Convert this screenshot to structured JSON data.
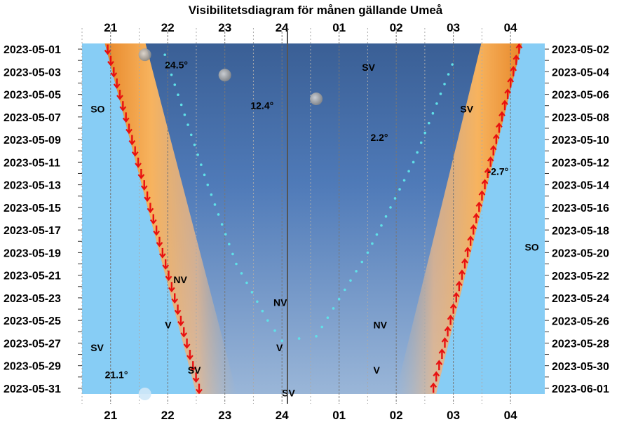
{
  "chart_data": {
    "type": "visibility-diagram",
    "title": "Visibilitetsdiagram för månen gällande Umeå",
    "x_hour_labels": [
      "21",
      "22",
      "23",
      "24",
      "01",
      "02",
      "03",
      "04"
    ],
    "dates_left": [
      "2023-05-01",
      "2023-05-03",
      "2023-05-05",
      "2023-05-07",
      "2023-05-09",
      "2023-05-11",
      "2023-05-13",
      "2023-05-15",
      "2023-05-17",
      "2023-05-19",
      "2023-05-21",
      "2023-05-23",
      "2023-05-25",
      "2023-05-27",
      "2023-05-29",
      "2023-05-31"
    ],
    "dates_right": [
      "2023-05-02",
      "2023-05-04",
      "2023-05-06",
      "2023-05-08",
      "2023-05-10",
      "2023-05-12",
      "2023-05-14",
      "2023-05-16",
      "2023-05-18",
      "2023-05-20",
      "2023-05-22",
      "2023-05-24",
      "2023-05-26",
      "2023-05-28",
      "2023-05-30",
      "2023-06-01"
    ],
    "labels": [
      {
        "text": "24.5°",
        "hour": 21.95,
        "row": 1.4
      },
      {
        "text": "12.4°",
        "hour": 23.45,
        "row": 5.0
      },
      {
        "text": "2.2°",
        "hour": 25.55,
        "row": 7.8
      },
      {
        "text": "-2.7°",
        "hour": 27.6,
        "row": 10.8
      },
      {
        "text": "21.1°",
        "hour": 20.9,
        "row": 28.8
      },
      {
        "text": "SV",
        "hour": 25.4,
        "row": 1.6
      },
      {
        "text": "SV",
        "hour": 27.12,
        "row": 5.3
      },
      {
        "text": "SO",
        "hour": 20.65,
        "row": 5.3
      },
      {
        "text": "SO",
        "hour": 28.25,
        "row": 17.5
      },
      {
        "text": "NV",
        "hour": 22.1,
        "row": 20.4
      },
      {
        "text": "NV",
        "hour": 23.85,
        "row": 22.4
      },
      {
        "text": "NV",
        "hour": 25.6,
        "row": 24.4
      },
      {
        "text": "V",
        "hour": 21.95,
        "row": 24.4
      },
      {
        "text": "V",
        "hour": 23.9,
        "row": 26.4
      },
      {
        "text": "V",
        "hour": 25.6,
        "row": 28.4
      },
      {
        "text": "SV",
        "hour": 20.65,
        "row": 26.4
      },
      {
        "text": "SV",
        "hour": 22.35,
        "row": 28.4
      },
      {
        "text": "SV",
        "hour": 24.0,
        "row": 30.4
      }
    ],
    "moon_phases": [
      {
        "hour": 21.6,
        "row": 0.5,
        "phase": "full"
      },
      {
        "hour": 23.0,
        "row": 2.3,
        "phase": "full"
      },
      {
        "hour": 24.6,
        "row": 4.4,
        "phase": "full"
      },
      {
        "hour": 21.6,
        "row": 30.5,
        "phase": "new"
      }
    ],
    "sun_set_hour": {
      "start": 20.9,
      "end": 22.5
    },
    "sun_rise_hour": {
      "start": 28.2,
      "end": 26.7
    },
    "moon_trail": [
      {
        "hour": 21.95,
        "row": 0.5
      },
      {
        "hour": 22.7,
        "row": 12.0
      },
      {
        "hour": 23.2,
        "row": 19.0
      },
      {
        "hour": 23.75,
        "row": 24.0
      },
      {
        "hour": 24.0,
        "row": 25.8
      },
      {
        "hour": 24.6,
        "row": 25.4
      },
      {
        "hour": 25.5,
        "row": 18.0
      },
      {
        "hour": 26.3,
        "row": 10.0
      },
      {
        "hour": 27.05,
        "row": 0.5
      }
    ]
  }
}
